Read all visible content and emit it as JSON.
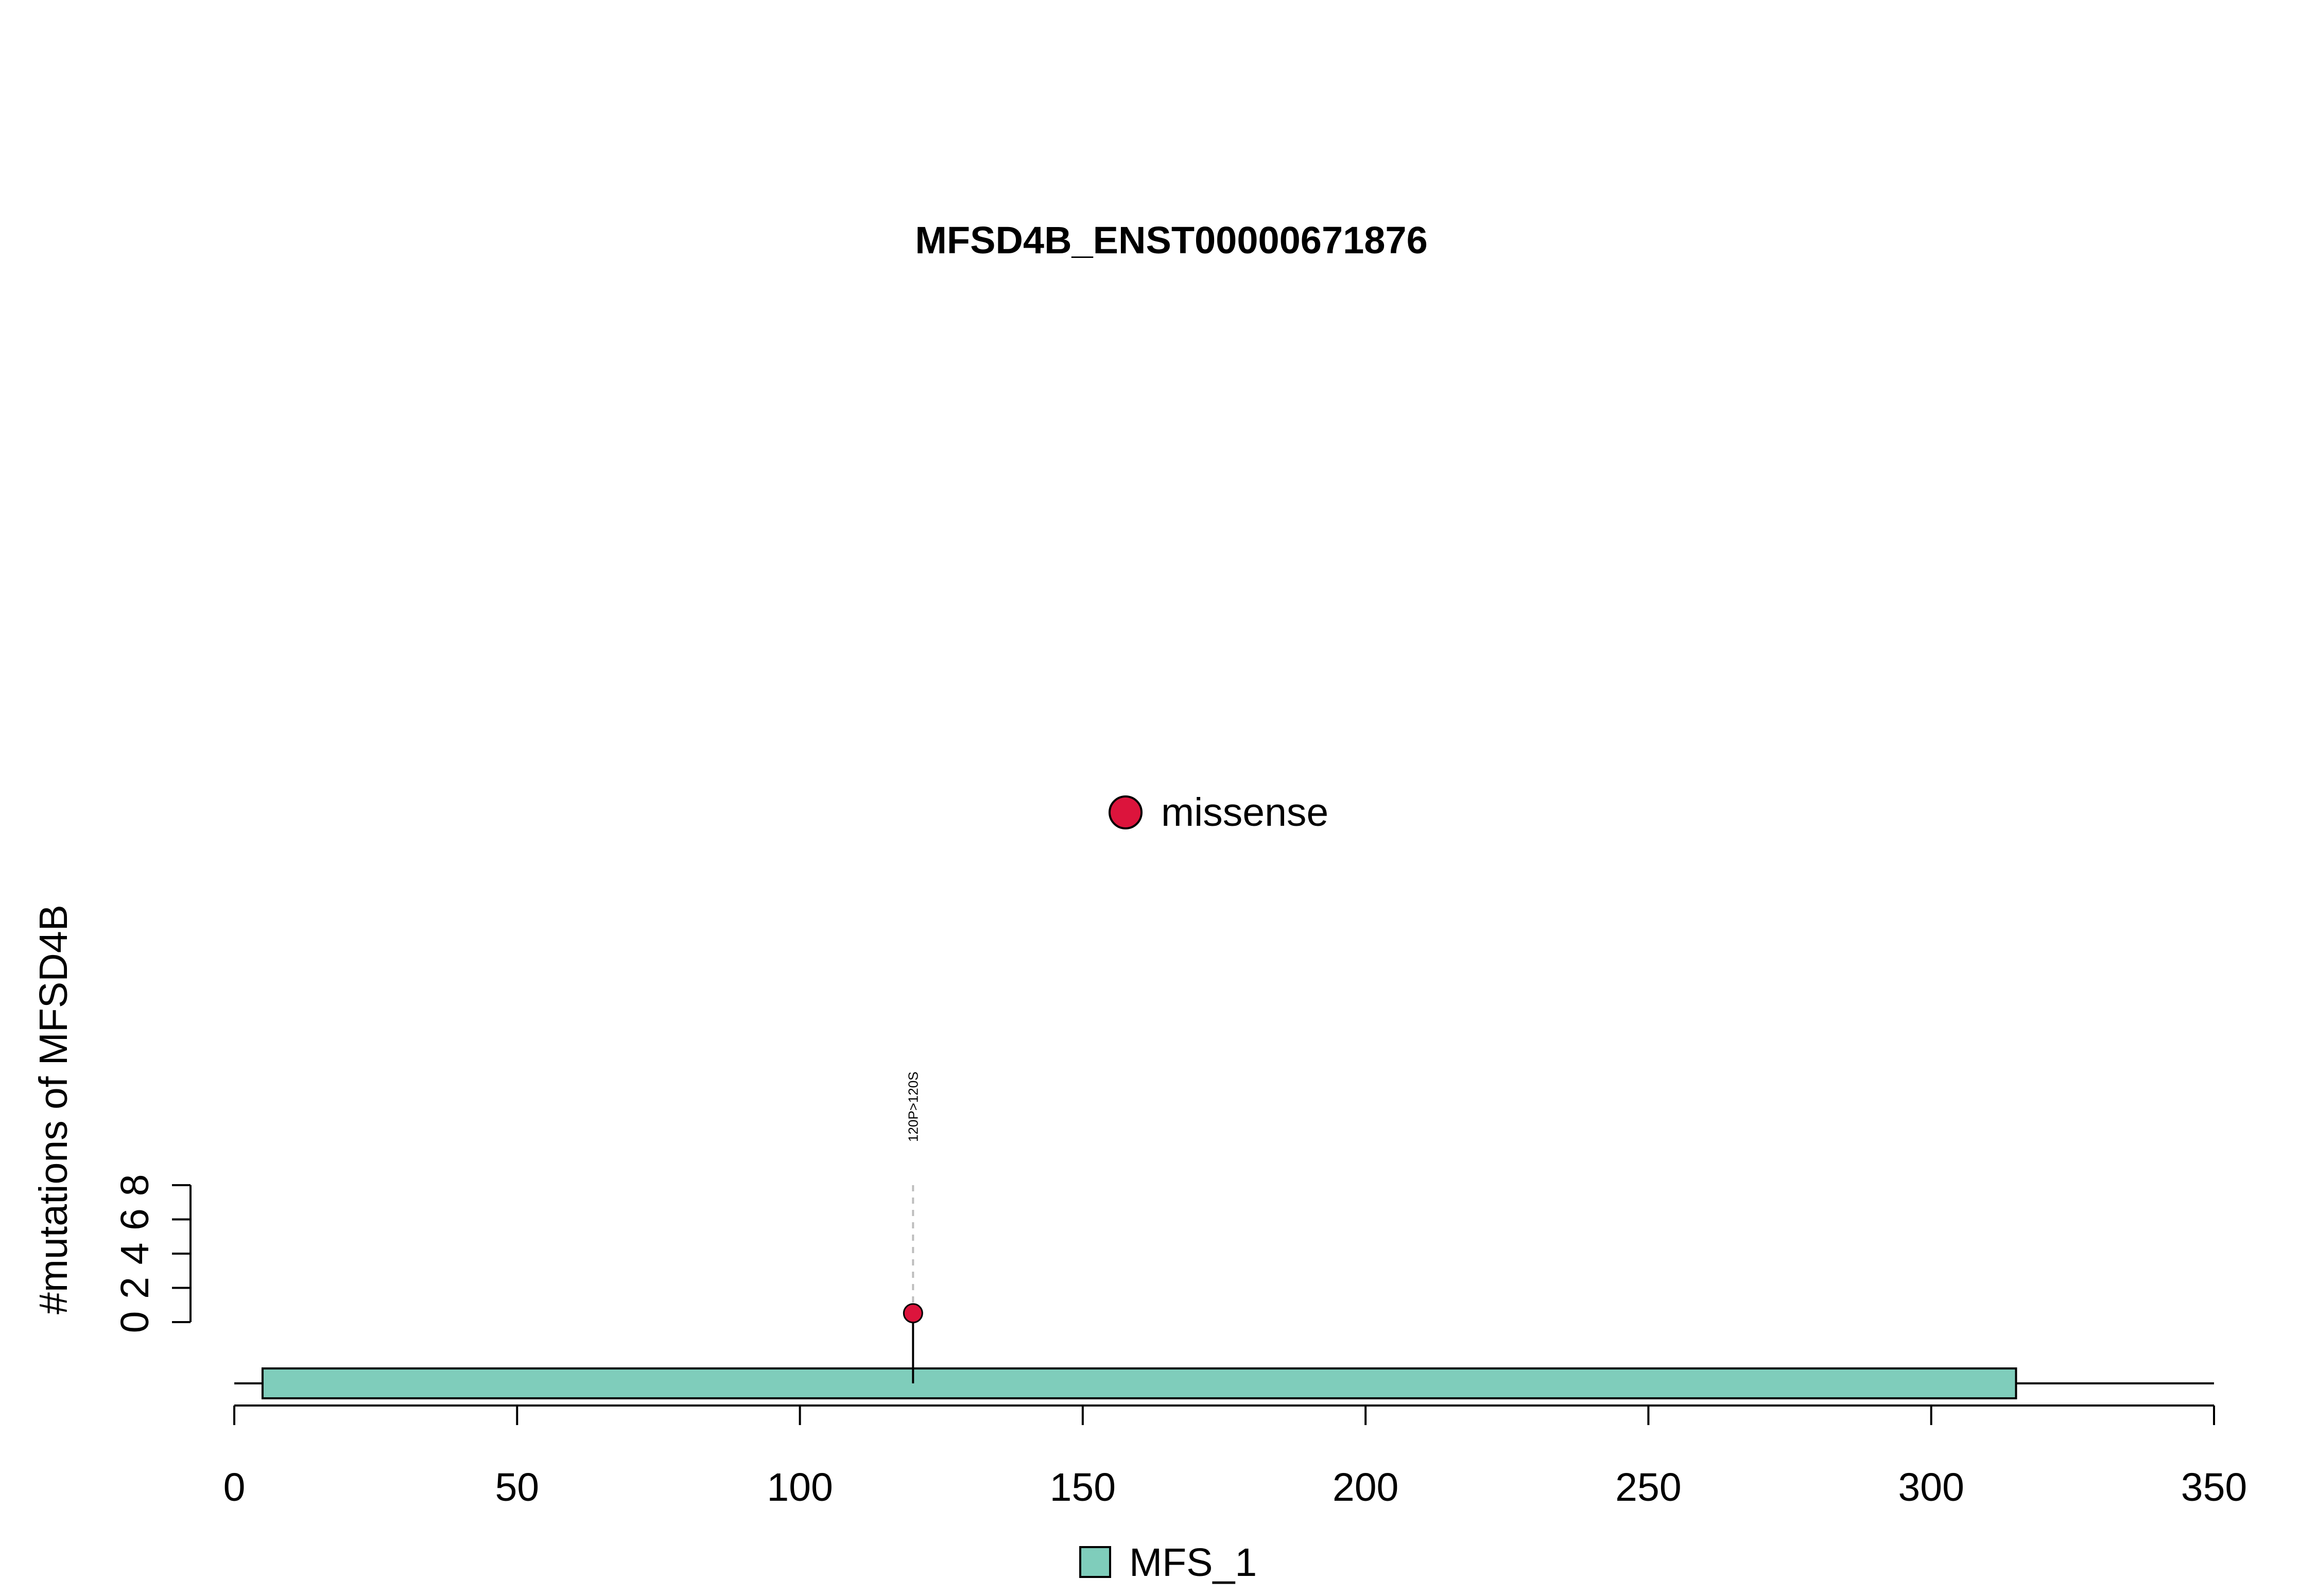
{
  "chart_data": {
    "type": "lollipop",
    "title": "MFSD4B_ENST00000671876",
    "ylabel": "#mutations of MFSD4B",
    "xlabel": "",
    "xlim": [
      0,
      350
    ],
    "x_ticks": [
      0,
      50,
      100,
      150,
      200,
      250,
      300,
      350
    ],
    "ylim": [
      0,
      8
    ],
    "y_ticks": [
      0,
      2,
      4,
      6,
      8
    ],
    "protein_length": 350,
    "domains": [
      {
        "name": "MFS_1",
        "start": 5,
        "end": 315,
        "color": "#7FCDBB"
      }
    ],
    "mutations": [
      {
        "position": 120,
        "count": 1,
        "label": "120P>120S",
        "type": "missense"
      }
    ],
    "mutation_legend": [
      {
        "type": "missense",
        "color": "#DC143C"
      }
    ],
    "domain_legend": [
      {
        "name": "MFS_1",
        "color": "#7FCDBB"
      }
    ]
  }
}
